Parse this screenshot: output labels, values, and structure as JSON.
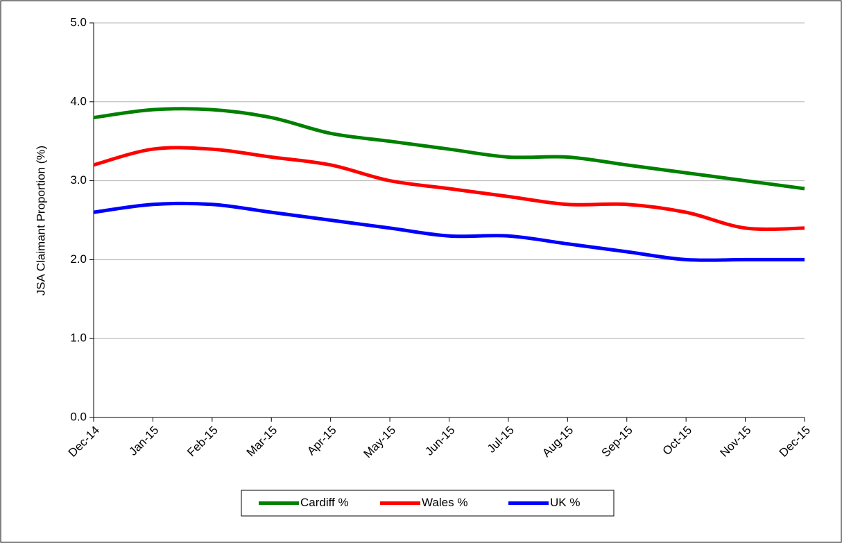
{
  "chart_data": {
    "type": "line",
    "y_label": "JSA Claimant Proportion (%)",
    "categories": [
      "Dec-14",
      "Jan-15",
      "Feb-15",
      "Mar-15",
      "Apr-15",
      "May-15",
      "Jun-15",
      "Jul-15",
      "Aug-15",
      "Sep-15",
      "Oct-15",
      "Nov-15",
      "Dec-15"
    ],
    "series": [
      {
        "name": "Cardiff %",
        "color": "#008000",
        "values": [
          3.8,
          3.9,
          3.9,
          3.8,
          3.6,
          3.5,
          3.4,
          3.3,
          3.3,
          3.2,
          3.1,
          3.0,
          2.9
        ]
      },
      {
        "name": "Wales %",
        "color": "#ff0000",
        "values": [
          3.2,
          3.4,
          3.4,
          3.3,
          3.2,
          3.0,
          2.9,
          2.8,
          2.7,
          2.7,
          2.6,
          2.4,
          2.4
        ]
      },
      {
        "name": "UK %",
        "color": "#0000ff",
        "values": [
          2.6,
          2.7,
          2.7,
          2.6,
          2.5,
          2.4,
          2.3,
          2.3,
          2.2,
          2.1,
          2.0,
          2.0,
          2.0
        ]
      }
    ],
    "ylim": [
      0,
      5
    ],
    "yticks": [
      {
        "value": 0,
        "label": "0.0"
      },
      {
        "value": 1,
        "label": "1.0"
      },
      {
        "value": 2,
        "label": "2.0"
      },
      {
        "value": 3,
        "label": "3.0"
      },
      {
        "value": 4,
        "label": "4.0"
      },
      {
        "value": 5,
        "label": "5.0"
      }
    ],
    "grid": true,
    "legend": "bottom"
  }
}
